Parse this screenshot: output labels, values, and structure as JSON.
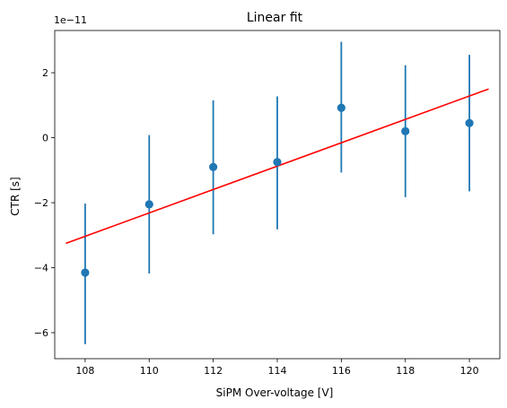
{
  "chart_data": {
    "type": "scatter",
    "title": "Linear fit",
    "xlabel": "SiPM Over-voltage [V]",
    "ylabel": "CTR [s]",
    "y_offset_label": "1e−11",
    "xlim": [
      107.05,
      120.95
    ],
    "ylim": [
      -6.8,
      3.3
    ],
    "x_ticks": [
      108,
      110,
      112,
      114,
      116,
      118,
      120
    ],
    "y_ticks": [
      -6,
      -4,
      -2,
      0,
      2
    ],
    "points": {
      "x": [
        108,
        110,
        112,
        114,
        116,
        118,
        120
      ],
      "y": [
        -4.15,
        -2.05,
        -0.9,
        -0.75,
        0.92,
        0.2,
        0.45
      ],
      "yerr_low": [
        -6.35,
        -4.18,
        -2.97,
        -2.82,
        -1.07,
        -1.83,
        -1.65
      ],
      "yerr_high": [
        -2.03,
        0.08,
        1.15,
        1.27,
        2.95,
        2.23,
        2.55
      ],
      "color": "#1f77b4"
    },
    "fit_line": {
      "x": [
        107.4,
        120.6
      ],
      "y": [
        -3.25,
        1.5
      ],
      "color": "#ff0000"
    },
    "grid": false,
    "legend": "none"
  }
}
